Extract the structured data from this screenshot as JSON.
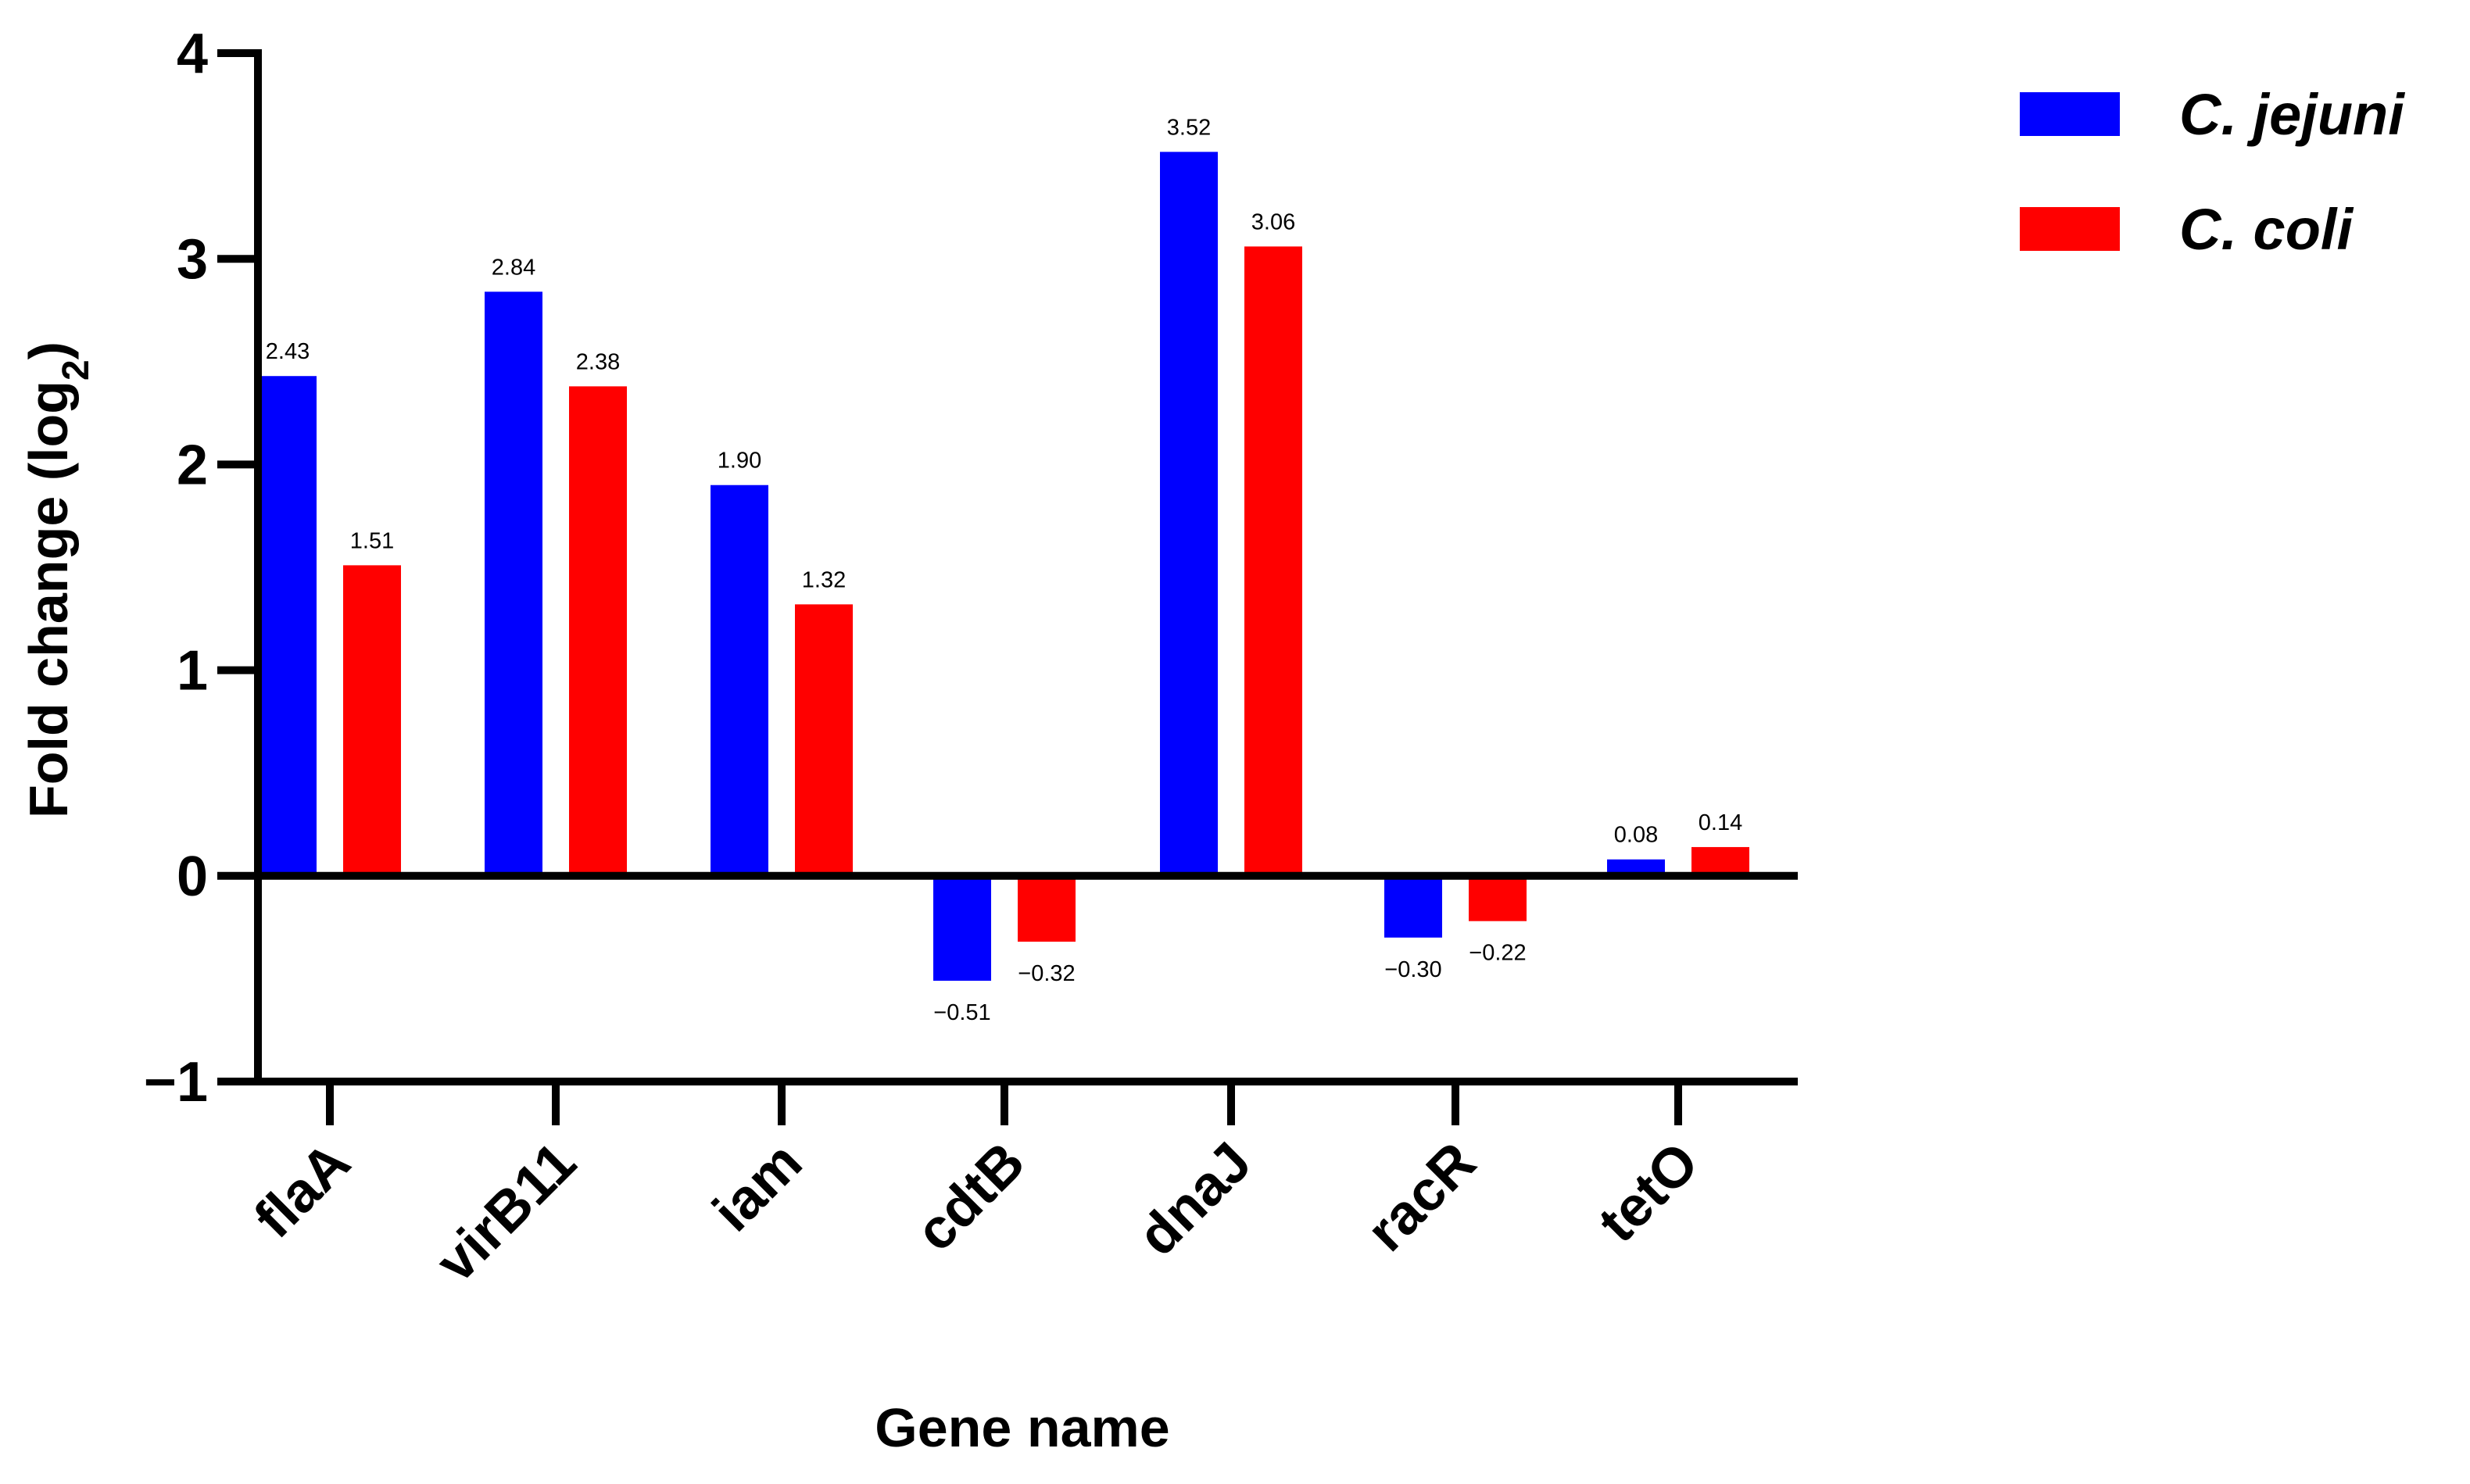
{
  "chart_data": {
    "type": "bar",
    "title": "",
    "xlabel": "Gene name",
    "ylabel_main": "Fold change (log",
    "ylabel_sub": "2",
    "ylabel_close": ")",
    "ylim": [
      -1,
      4
    ],
    "yticks": [
      {
        "value": 4,
        "label": "4"
      },
      {
        "value": 3,
        "label": "3"
      },
      {
        "value": 2,
        "label": "2"
      },
      {
        "value": 1,
        "label": "1"
      },
      {
        "value": 0,
        "label": "0"
      },
      {
        "value": -1,
        "label": "−1"
      }
    ],
    "categories": [
      "flaA",
      "virB11",
      "iam",
      "cdtB",
      "dnaJ",
      "racR",
      "tetO"
    ],
    "series": [
      {
        "name": "C. jejuni",
        "color": "#0000ff",
        "values": [
          2.43,
          2.84,
          1.9,
          -0.51,
          3.52,
          -0.3,
          0.08
        ],
        "labels": [
          "2.43",
          "2.84",
          "1.90",
          "−0.51",
          "3.52",
          "−0.30",
          "0.08"
        ]
      },
      {
        "name": "C. coli",
        "color": "#ff0000",
        "values": [
          1.51,
          2.38,
          1.32,
          -0.32,
          3.06,
          -0.22,
          0.14
        ],
        "labels": [
          "1.51",
          "2.38",
          "1.32",
          "−0.32",
          "3.06",
          "−0.22",
          "0.14"
        ]
      }
    ],
    "legend_position": "top-right",
    "grid": false
  }
}
